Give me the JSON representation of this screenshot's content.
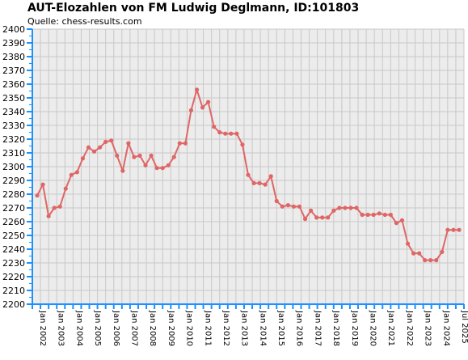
{
  "chart_data": {
    "type": "line",
    "title": "AUT-Elozahlen von FM Ludwig Deglmann, ID:101803",
    "subtitle": "Quelle: chess-results.com",
    "xlabel": "",
    "ylabel": "",
    "ylim": [
      2200,
      2400
    ],
    "yticks": [
      2200,
      2210,
      2220,
      2230,
      2240,
      2250,
      2260,
      2270,
      2280,
      2290,
      2300,
      2310,
      2320,
      2330,
      2340,
      2350,
      2360,
      2370,
      2380,
      2390,
      2400
    ],
    "grid": true,
    "line_color": "#e06666",
    "plot_background": "#ececec",
    "axis_color": "#1e90ff",
    "x_tick_labels": [
      "Jan 2002",
      "Jan 2003",
      "Jan 2004",
      "Jan 2005",
      "Jan 2006",
      "Jan 2007",
      "Jan 2008",
      "Jan 2009",
      "Jan 2010",
      "Jan 2011",
      "Jan 2012",
      "Jan 2013",
      "Jan 2014",
      "Jan 2015",
      "Jan 2016",
      "Jan 2017",
      "Jan 2018",
      "Jan 2019",
      "Jan 2020",
      "Jan 2021",
      "Jan 2022",
      "Jan 2023",
      "Jan 2024",
      "Jul 2025"
    ],
    "series": [
      {
        "values": [
          2279,
          2287,
          2264,
          2270,
          2271,
          2284,
          2294,
          2296,
          2306,
          2314,
          2311,
          2314,
          2318,
          2319,
          2308,
          2297,
          2317,
          2307,
          2308,
          2301,
          2308,
          2299,
          2299,
          2301,
          2307,
          2317,
          2317,
          2341,
          2356,
          2343,
          2347,
          2329,
          2325,
          2324,
          2324,
          2324,
          2316,
          2294,
          2288,
          2288,
          2287,
          2293,
          2275,
          2271,
          2272,
          2271,
          2271,
          2262,
          2268,
          2263,
          2263,
          2263,
          2268,
          2270,
          2270,
          2270,
          2270,
          2265,
          2265,
          2265,
          2266,
          2265,
          2265,
          2259,
          2261,
          2244,
          2237,
          2237,
          2232,
          2232,
          2232,
          2238,
          2254,
          2254,
          2254
        ]
      }
    ]
  }
}
